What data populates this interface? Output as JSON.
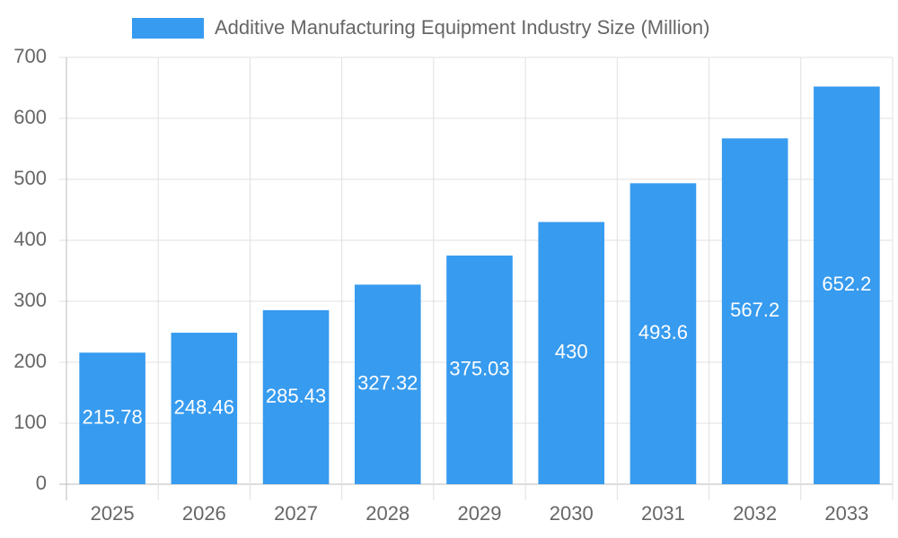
{
  "chart_data": {
    "type": "bar",
    "categories": [
      "2025",
      "2026",
      "2027",
      "2028",
      "2029",
      "2030",
      "2031",
      "2032",
      "2033"
    ],
    "series": [
      {
        "name": "Additive Manufacturing Equipment Industry Size (Million)",
        "color": "#379bef",
        "values": [
          215.78,
          248.46,
          285.43,
          327.32,
          375.03,
          430,
          493.6,
          567.2,
          652.2
        ]
      }
    ],
    "ylim": [
      0,
      700
    ],
    "yticks": [
      0,
      100,
      200,
      300,
      400,
      500,
      600,
      700
    ],
    "grid": true
  }
}
